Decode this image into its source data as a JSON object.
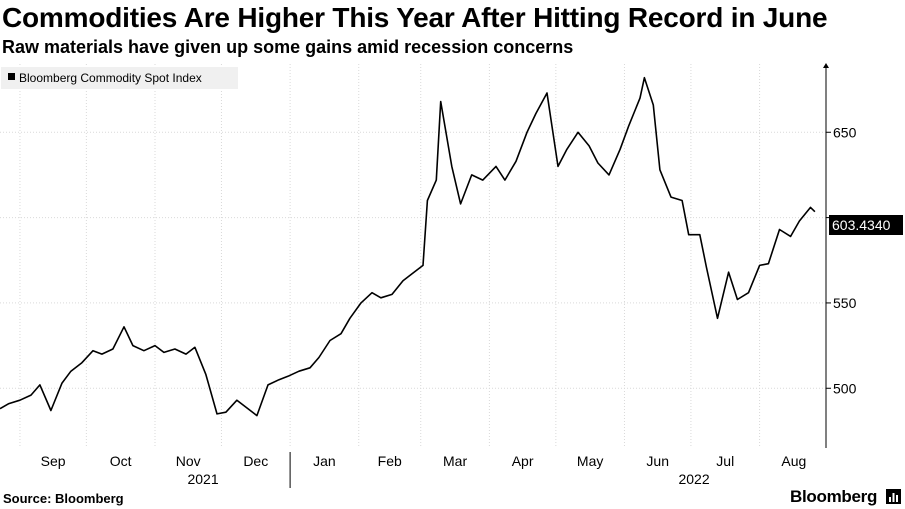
{
  "header": {
    "title": "Commodities Are Higher This Year After Hitting Record in June",
    "subtitle": "Raw materials have given up some gains amid recession concerns"
  },
  "footer": {
    "source": "Source: Bloomberg",
    "brand": "Bloomberg"
  },
  "colors": {
    "line": "#000000",
    "grid": "#d9d9d9",
    "legend_bg": "#f0f0f0",
    "last_value_bg": "#000000"
  },
  "chart_data": {
    "type": "line",
    "title": "Commodities Are Higher This Year After Hitting Record in June",
    "subtitle": "Raw materials have given up some gains amid recession concerns",
    "legend": {
      "position": "top-left",
      "entries": [
        "Bloomberg Commodity Spot Index"
      ]
    },
    "last_value_label": "603.4340",
    "ylim": [
      465,
      690
    ],
    "yticks": [
      500,
      550,
      650
    ],
    "xlim": [
      "2021-08-23",
      "2022-08-31"
    ],
    "x_month_labels": [
      "Sep",
      "Oct",
      "Nov",
      "Dec",
      "Jan",
      "Feb",
      "Mar",
      "Apr",
      "May",
      "Jun",
      "Jul",
      "Aug"
    ],
    "x_year_labels": [
      "2021",
      "2022"
    ],
    "grid": true,
    "y_axis_side": "right",
    "series": [
      {
        "name": "Bloomberg Commodity Spot Index",
        "x": [
          "2021-08-23",
          "2021-08-27",
          "2021-09-01",
          "2021-09-06",
          "2021-09-10",
          "2021-09-15",
          "2021-09-20",
          "2021-09-24",
          "2021-09-29",
          "2021-10-04",
          "2021-10-08",
          "2021-10-13",
          "2021-10-18",
          "2021-10-22",
          "2021-10-27",
          "2021-11-01",
          "2021-11-05",
          "2021-11-10",
          "2021-11-15",
          "2021-11-19",
          "2021-11-24",
          "2021-11-29",
          "2021-12-03",
          "2021-12-08",
          "2021-12-13",
          "2021-12-17",
          "2021-12-22",
          "2021-12-27",
          "2021-12-31",
          "2022-01-05",
          "2022-01-10",
          "2022-01-14",
          "2022-01-19",
          "2022-01-24",
          "2022-01-28",
          "2022-02-02",
          "2022-02-07",
          "2022-02-11",
          "2022-02-16",
          "2022-02-21",
          "2022-02-25",
          "2022-03-02",
          "2022-03-04",
          "2022-03-08",
          "2022-03-10",
          "2022-03-15",
          "2022-03-19",
          "2022-03-24",
          "2022-03-29",
          "2022-04-04",
          "2022-04-08",
          "2022-04-13",
          "2022-04-18",
          "2022-04-22",
          "2022-04-27",
          "2022-05-02",
          "2022-05-06",
          "2022-05-11",
          "2022-05-16",
          "2022-05-20",
          "2022-05-25",
          "2022-05-30",
          "2022-06-03",
          "2022-06-08",
          "2022-06-10",
          "2022-06-14",
          "2022-06-17",
          "2022-06-22",
          "2022-06-27",
          "2022-06-30",
          "2022-07-05",
          "2022-07-08",
          "2022-07-13",
          "2022-07-18",
          "2022-07-22",
          "2022-07-27",
          "2022-08-01",
          "2022-08-05",
          "2022-08-10",
          "2022-08-15",
          "2022-08-19",
          "2022-08-24",
          "2022-08-26"
        ],
        "values": [
          488,
          491,
          493,
          496,
          502,
          487,
          503,
          510,
          515,
          522,
          520,
          523,
          536,
          525,
          522,
          525,
          521,
          523,
          520,
          524,
          508,
          485,
          486,
          493,
          488,
          484,
          502,
          505,
          507,
          510,
          512,
          518,
          528,
          532,
          541,
          550,
          556,
          553,
          555,
          563,
          567,
          572,
          610,
          622,
          668,
          630,
          608,
          625,
          622,
          630,
          622,
          633,
          650,
          661,
          673,
          630,
          640,
          650,
          642,
          632,
          625,
          640,
          654,
          670,
          682,
          666,
          628,
          612,
          610,
          590,
          590,
          571,
          541,
          568,
          552,
          556,
          572,
          573,
          593,
          589,
          598,
          606,
          603.434
        ]
      }
    ]
  }
}
